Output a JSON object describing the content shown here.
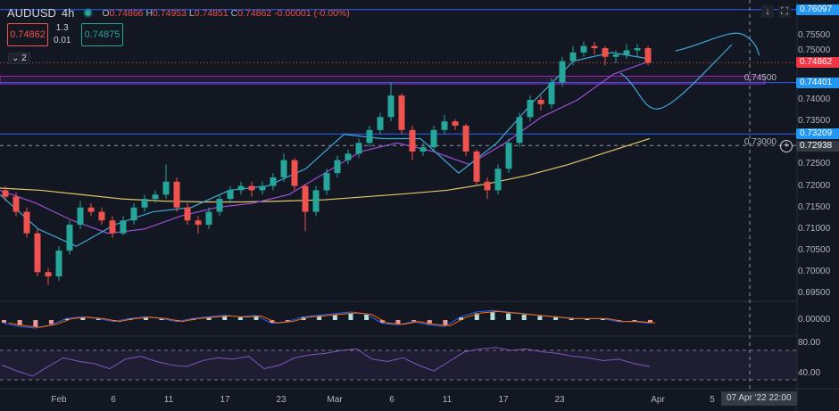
{
  "header": {
    "symbol": "AUDUSD",
    "interval": "4h",
    "o_label": "O",
    "o": "0.74866",
    "h_label": "H",
    "h": "0.74953",
    "l_label": "L",
    "l": "0.74851",
    "c_label": "C",
    "c": "0.74862",
    "change": "-0.00001 (-0.00%)"
  },
  "trade": {
    "sell": "0.74862",
    "buy": "0.74875",
    "spread_top": "1.3",
    "spread_bottom": "0.01"
  },
  "collapse_label": "⌄ 2",
  "toolbar": {
    "scroll_icon": "arrow-down-icon",
    "fullscreen_icon": "fullscreen-icon"
  },
  "colors": {
    "up": "#26a69a",
    "down": "#ef5350",
    "ma_long": "#e0c86a",
    "ma_mid": "#9c4fd6",
    "ma_short": "#3fa9d8",
    "hline": "#2962ff",
    "zone": "#9c27b0",
    "tag_blue": "#2196f3",
    "tag_red": "#f23645"
  },
  "chart_data": {
    "type": "candlestick",
    "price_ticks": [
      "0.75500",
      "0.75000",
      "0.74500",
      "0.74000",
      "0.73500",
      "0.73000",
      "0.72500",
      "0.72000",
      "0.71500",
      "0.71000",
      "0.70500",
      "0.70000",
      "0.69500"
    ],
    "price_tick_values": [
      0.755,
      0.75,
      0.745,
      0.74,
      0.735,
      0.73,
      0.725,
      0.72,
      0.715,
      0.71,
      0.705,
      0.7,
      0.695
    ],
    "time_ticks": [
      "Feb",
      "6",
      "11",
      "17",
      "23",
      "Mar",
      "6",
      "11",
      "17",
      "23",
      "Apr",
      "5"
    ],
    "crosshair_time": "07 Apr '22   22:00",
    "crosshair_price": "0.72938",
    "last_price": "0.74862",
    "horizontal_lines": [
      {
        "label": "0.76097",
        "value": 0.76097
      },
      {
        "label": "0.74401",
        "value": 0.74401
      },
      {
        "label": "0.73209",
        "value": 0.73209
      }
    ],
    "zone": [
      0.7437,
      0.7455
    ],
    "candles": [
      [
        0.719,
        0.72,
        0.7165,
        0.7175
      ],
      [
        0.7175,
        0.7185,
        0.713,
        0.714
      ],
      [
        0.714,
        0.715,
        0.708,
        0.709
      ],
      [
        0.709,
        0.71,
        0.699,
        0.7
      ],
      [
        0.7,
        0.701,
        0.697,
        0.699
      ],
      [
        0.699,
        0.706,
        0.698,
        0.705
      ],
      [
        0.705,
        0.712,
        0.704,
        0.711
      ],
      [
        0.711,
        0.7165,
        0.71,
        0.715
      ],
      [
        0.715,
        0.716,
        0.713,
        0.714
      ],
      [
        0.714,
        0.715,
        0.711,
        0.712
      ],
      [
        0.712,
        0.713,
        0.708,
        0.709
      ],
      [
        0.709,
        0.713,
        0.7085,
        0.712
      ],
      [
        0.712,
        0.716,
        0.711,
        0.715
      ],
      [
        0.715,
        0.718,
        0.714,
        0.717
      ],
      [
        0.717,
        0.719,
        0.716,
        0.718
      ],
      [
        0.718,
        0.725,
        0.717,
        0.721
      ],
      [
        0.721,
        0.722,
        0.714,
        0.715
      ],
      [
        0.715,
        0.716,
        0.711,
        0.712
      ],
      [
        0.712,
        0.713,
        0.709,
        0.711
      ],
      [
        0.711,
        0.715,
        0.71,
        0.714
      ],
      [
        0.714,
        0.718,
        0.713,
        0.717
      ],
      [
        0.717,
        0.72,
        0.716,
        0.719
      ],
      [
        0.719,
        0.721,
        0.718,
        0.72
      ],
      [
        0.72,
        0.721,
        0.7175,
        0.719
      ],
      [
        0.719,
        0.721,
        0.718,
        0.72
      ],
      [
        0.72,
        0.723,
        0.719,
        0.722
      ],
      [
        0.722,
        0.7275,
        0.721,
        0.726
      ],
      [
        0.726,
        0.7265,
        0.719,
        0.72
      ],
      [
        0.72,
        0.7205,
        0.7095,
        0.714
      ],
      [
        0.714,
        0.72,
        0.713,
        0.719
      ],
      [
        0.719,
        0.724,
        0.718,
        0.723
      ],
      [
        0.723,
        0.727,
        0.722,
        0.726
      ],
      [
        0.726,
        0.7285,
        0.725,
        0.7275
      ],
      [
        0.7275,
        0.731,
        0.7265,
        0.73
      ],
      [
        0.73,
        0.734,
        0.729,
        0.733
      ],
      [
        0.733,
        0.737,
        0.732,
        0.736
      ],
      [
        0.736,
        0.744,
        0.735,
        0.741
      ],
      [
        0.741,
        0.7415,
        0.732,
        0.733
      ],
      [
        0.733,
        0.734,
        0.726,
        0.728
      ],
      [
        0.728,
        0.73,
        0.727,
        0.729
      ],
      [
        0.729,
        0.734,
        0.728,
        0.733
      ],
      [
        0.733,
        0.7365,
        0.732,
        0.735
      ],
      [
        0.735,
        0.7355,
        0.733,
        0.734
      ],
      [
        0.734,
        0.7345,
        0.727,
        0.728
      ],
      [
        0.728,
        0.7285,
        0.72,
        0.721
      ],
      [
        0.721,
        0.722,
        0.717,
        0.719
      ],
      [
        0.719,
        0.725,
        0.718,
        0.724
      ],
      [
        0.724,
        0.731,
        0.723,
        0.73
      ],
      [
        0.73,
        0.737,
        0.729,
        0.736
      ],
      [
        0.736,
        0.741,
        0.735,
        0.74
      ],
      [
        0.74,
        0.741,
        0.7375,
        0.739
      ],
      [
        0.739,
        0.745,
        0.738,
        0.744
      ],
      [
        0.744,
        0.75,
        0.743,
        0.749
      ],
      [
        0.749,
        0.7525,
        0.748,
        0.751
      ],
      [
        0.751,
        0.7535,
        0.75,
        0.7525
      ],
      [
        0.7525,
        0.7535,
        0.7505,
        0.752
      ],
      [
        0.752,
        0.7525,
        0.748,
        0.75
      ],
      [
        0.75,
        0.7515,
        0.7485,
        0.7505
      ],
      [
        0.7505,
        0.753,
        0.7495,
        0.7515
      ],
      [
        0.7515,
        0.753,
        0.75,
        0.752
      ],
      [
        0.752,
        0.7525,
        0.748,
        0.7486
      ]
    ],
    "ma_long": [
      0.7195,
      0.719,
      0.718,
      0.717,
      0.7165,
      0.7163,
      0.7163,
      0.7165,
      0.7168,
      0.7175,
      0.7182,
      0.719,
      0.7205,
      0.7225,
      0.725,
      0.728,
      0.731
    ],
    "ma_mid": [
      0.719,
      0.716,
      0.712,
      0.709,
      0.71,
      0.713,
      0.715,
      0.716,
      0.718,
      0.723,
      0.728,
      0.73,
      0.728,
      0.725,
      0.73,
      0.736,
      0.74,
      0.746,
      0.749
    ],
    "ma_short": [
      0.718,
      0.71,
      0.706,
      0.711,
      0.714,
      0.715,
      0.719,
      0.72,
      0.724,
      0.732,
      0.731,
      0.731,
      0.723,
      0.73,
      0.74,
      0.749,
      0.751,
      0.7495
    ],
    "rsi_ticks": [
      "80.00",
      "40.00"
    ],
    "macd_tick": "0.00000",
    "rsi": [
      50,
      42,
      35,
      48,
      60,
      55,
      52,
      45,
      58,
      62,
      55,
      50,
      48,
      56,
      60,
      58,
      62,
      45,
      50,
      60,
      64,
      66,
      70,
      72,
      58,
      55,
      60,
      50,
      42,
      55,
      68,
      72,
      74,
      70,
      72,
      68,
      66,
      62,
      60,
      56,
      58,
      52,
      48
    ],
    "macd_hist": [
      -2,
      -4,
      -5,
      -3,
      1,
      2,
      1,
      -1,
      1,
      2,
      1,
      -1,
      1,
      2,
      3,
      2,
      3,
      -2,
      -1,
      2,
      3,
      4,
      5,
      4,
      -2,
      -3,
      -1,
      -3,
      -4,
      2,
      5,
      6,
      5,
      4,
      3,
      2,
      1,
      1,
      1,
      -1,
      -1,
      -2
    ]
  }
}
